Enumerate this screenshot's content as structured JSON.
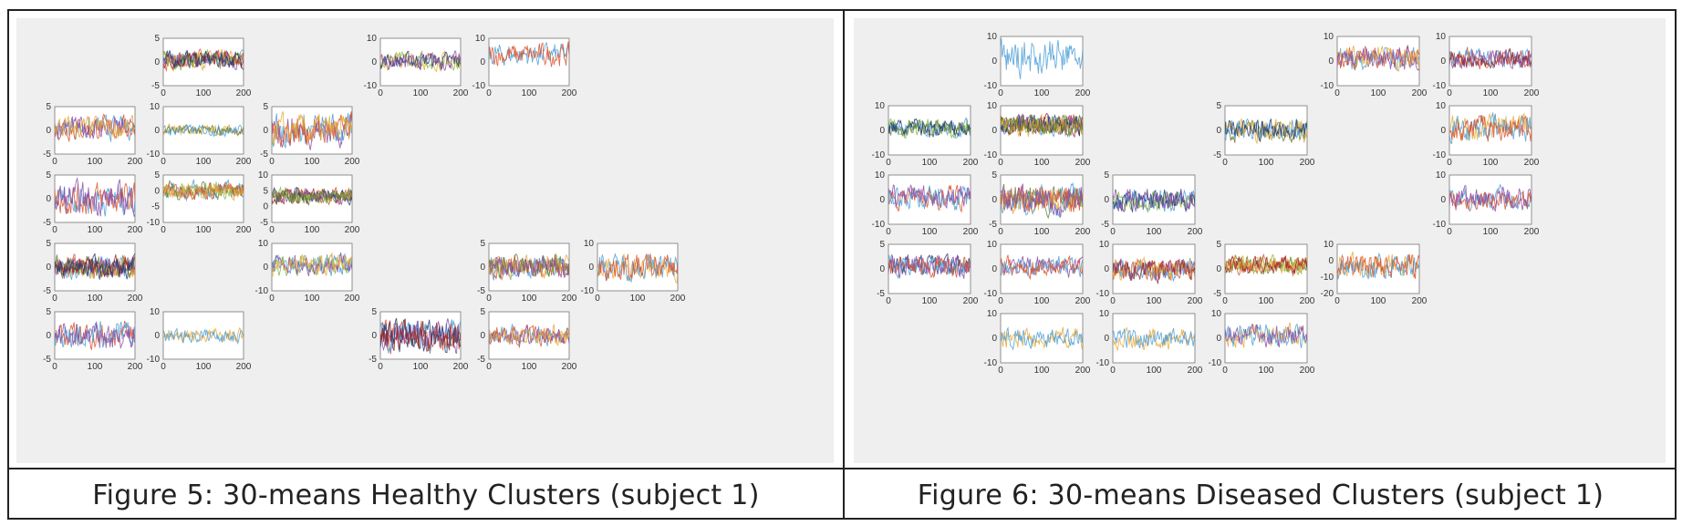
{
  "table": {
    "left_caption": "Figure 5: 30-means Healthy Clusters (subject 1)",
    "right_caption": "Figure 6: 30-means Diseased Clusters (subject 1)"
  },
  "colors": {
    "blue": "#4e9fd6",
    "red": "#d9542b",
    "yellow": "#e6a93a",
    "purple": "#8a4ea8",
    "green": "#84b83f",
    "navy": "#1f3d73",
    "darkred": "#9b2a2a",
    "olive": "#6a7a2a"
  },
  "chart_data": [
    {
      "type": "line",
      "panel": "healthy",
      "subplots": [
        {
          "row": 0,
          "col": 1,
          "ylim": [
            -5,
            5
          ],
          "yticks": [
            "5",
            "0",
            "-5"
          ],
          "xticks": [
            "0",
            "100",
            "200"
          ],
          "amp": 0.16,
          "colors": [
            "blue",
            "red",
            "yellow",
            "purple",
            "green",
            "darkred",
            "navy"
          ],
          "offset": 0.1
        },
        {
          "row": 0,
          "col": 3,
          "ylim": [
            -10,
            10
          ],
          "yticks": [
            "10",
            "0",
            "-10"
          ],
          "xticks": [
            "0",
            "100",
            "200"
          ],
          "amp": 0.16,
          "colors": [
            "green",
            "yellow",
            "navy",
            "purple"
          ],
          "offset": 0.05
        },
        {
          "row": 0,
          "col": 4,
          "ylim": [
            -10,
            10
          ],
          "yticks": [
            "10",
            "0",
            "-10"
          ],
          "xticks": [
            "0",
            "100",
            "200"
          ],
          "amp": 0.22,
          "colors": [
            "blue",
            "red"
          ],
          "offset": 0.3
        },
        {
          "row": 1,
          "col": 0,
          "ylim": [
            -5,
            5
          ],
          "yticks": [
            "5",
            "0",
            "-5"
          ],
          "xticks": [
            "0",
            "100",
            "200"
          ],
          "amp": 0.22,
          "colors": [
            "blue",
            "red",
            "purple",
            "yellow"
          ],
          "offset": 0.1
        },
        {
          "row": 1,
          "col": 1,
          "ylim": [
            -10,
            10
          ],
          "yticks": [
            "10",
            "0",
            "-10"
          ],
          "xticks": [
            "0",
            "100",
            "200"
          ],
          "amp": 0.1,
          "colors": [
            "yellow",
            "olive",
            "blue"
          ],
          "offset": 0
        },
        {
          "row": 1,
          "col": 2,
          "ylim": [
            -5,
            5
          ],
          "yticks": [
            "5",
            "0",
            "-5"
          ],
          "xticks": [
            "0",
            "100",
            "200"
          ],
          "amp": 0.3,
          "colors": [
            "blue",
            "purple",
            "red",
            "yellow"
          ],
          "offset": 0
        },
        {
          "row": 2,
          "col": 0,
          "ylim": [
            -5,
            5
          ],
          "yticks": [
            "5",
            "0",
            "-5"
          ],
          "xticks": [
            "0",
            "100",
            "200"
          ],
          "amp": 0.3,
          "colors": [
            "blue",
            "red",
            "purple"
          ],
          "offset": 0
        },
        {
          "row": 2,
          "col": 1,
          "ylim": [
            -10,
            10
          ],
          "yticks": [
            "5",
            "0",
            "-5",
            "-10"
          ],
          "xticks": [
            "0",
            "100",
            "200"
          ],
          "amp": 0.16,
          "colors": [
            "green",
            "blue",
            "olive",
            "red",
            "yellow"
          ],
          "offset": 0.35
        },
        {
          "row": 2,
          "col": 2,
          "ylim": [
            -10,
            10
          ],
          "yticks": [
            "10",
            "5",
            "0",
            "-5"
          ],
          "xticks": [
            "0",
            "100",
            "200"
          ],
          "amp": 0.14,
          "colors": [
            "darkred",
            "red",
            "navy",
            "purple",
            "green",
            "olive"
          ],
          "offset": 0.1
        },
        {
          "row": 3,
          "col": 0,
          "ylim": [
            -5,
            5
          ],
          "yticks": [
            "5",
            "0",
            "-5"
          ],
          "xticks": [
            "0",
            "100",
            "200"
          ],
          "amp": 0.2,
          "colors": [
            "blue",
            "red",
            "yellow",
            "purple",
            "olive",
            "darkred",
            "navy"
          ],
          "offset": 0
        },
        {
          "row": 3,
          "col": 2,
          "ylim": [
            -10,
            10
          ],
          "yticks": [
            "10",
            "0",
            "-10"
          ],
          "xticks": [
            "0",
            "100",
            "200"
          ],
          "amp": 0.2,
          "colors": [
            "blue",
            "green",
            "purple",
            "yellow"
          ],
          "offset": 0.1
        },
        {
          "row": 3,
          "col": 4,
          "ylim": [
            -5,
            5
          ],
          "yticks": [
            "5",
            "0",
            "-5"
          ],
          "xticks": [
            "0",
            "100",
            "200"
          ],
          "amp": 0.22,
          "colors": [
            "blue",
            "red",
            "yellow",
            "olive",
            "purple"
          ],
          "offset": 0
        },
        {
          "row": 3,
          "col": 5,
          "ylim": [
            -10,
            10
          ],
          "yticks": [
            "10",
            "0",
            "-10"
          ],
          "xticks": [
            "0",
            "100",
            "200"
          ],
          "amp": 0.25,
          "colors": [
            "yellow",
            "blue",
            "red"
          ],
          "offset": 0
        },
        {
          "row": 4,
          "col": 0,
          "ylim": [
            -5,
            5
          ],
          "yticks": [
            "5",
            "0",
            "-5"
          ],
          "xticks": [
            "0",
            "100",
            "200"
          ],
          "amp": 0.26,
          "colors": [
            "red",
            "blue",
            "purple"
          ],
          "offset": 0
        },
        {
          "row": 4,
          "col": 1,
          "ylim": [
            -10,
            10
          ],
          "yticks": [
            "10",
            "0",
            "-10"
          ],
          "xticks": [
            "0",
            "100",
            "200"
          ],
          "amp": 0.14,
          "colors": [
            "yellow",
            "blue"
          ],
          "offset": 0
        },
        {
          "row": 4,
          "col": 3,
          "ylim": [
            -5,
            5
          ],
          "yticks": [
            "5",
            "0",
            "-5"
          ],
          "xticks": [
            "0",
            "100",
            "200"
          ],
          "amp": 0.3,
          "colors": [
            "red",
            "blue",
            "purple",
            "navy",
            "darkred"
          ],
          "offset": 0
        },
        {
          "row": 4,
          "col": 4,
          "ylim": [
            -5,
            5
          ],
          "yticks": [
            "5",
            "0",
            "-5"
          ],
          "xticks": [
            "0",
            "100",
            "200"
          ],
          "amp": 0.18,
          "colors": [
            "blue",
            "red",
            "purple",
            "yellow"
          ],
          "offset": 0
        }
      ]
    },
    {
      "type": "line",
      "panel": "diseased",
      "subplots": [
        {
          "row": 0,
          "col": 1,
          "ylim": [
            -10,
            10
          ],
          "yticks": [
            "10",
            "0",
            "-10"
          ],
          "xticks": [
            "0",
            "100",
            "200"
          ],
          "amp": 0.34,
          "colors": [
            "blue"
          ],
          "offset": 0.15
        },
        {
          "row": 0,
          "col": 4,
          "ylim": [
            -10,
            10
          ],
          "yticks": [
            "10",
            "0",
            "-10"
          ],
          "xticks": [
            "0",
            "100",
            "200"
          ],
          "amp": 0.2,
          "colors": [
            "blue",
            "red",
            "yellow",
            "purple"
          ],
          "offset": 0.1
        },
        {
          "row": 0,
          "col": 5,
          "ylim": [
            -10,
            10
          ],
          "yticks": [
            "10",
            "0",
            "-10"
          ],
          "xticks": [
            "0",
            "100",
            "200"
          ],
          "amp": 0.18,
          "colors": [
            "red",
            "blue",
            "purple",
            "darkred"
          ],
          "offset": 0.1
        },
        {
          "row": 1,
          "col": 0,
          "ylim": [
            -10,
            10
          ],
          "yticks": [
            "10",
            "0",
            "-10"
          ],
          "xticks": [
            "0",
            "100",
            "200"
          ],
          "amp": 0.16,
          "colors": [
            "green",
            "blue",
            "olive",
            "navy"
          ],
          "offset": 0.1
        },
        {
          "row": 1,
          "col": 1,
          "ylim": [
            -10,
            10
          ],
          "yticks": [
            "10",
            "0",
            "-10"
          ],
          "xticks": [
            "0",
            "100",
            "200"
          ],
          "amp": 0.18,
          "colors": [
            "blue",
            "red",
            "darkred",
            "purple",
            "green",
            "navy",
            "yellow",
            "olive"
          ],
          "offset": 0.2
        },
        {
          "row": 1,
          "col": 3,
          "ylim": [
            -5,
            5
          ],
          "yticks": [
            "5",
            "0",
            "-5"
          ],
          "xticks": [
            "0",
            "100",
            "200"
          ],
          "amp": 0.2,
          "colors": [
            "olive",
            "blue",
            "yellow",
            "navy"
          ],
          "offset": 0
        },
        {
          "row": 1,
          "col": 5,
          "ylim": [
            -10,
            10
          ],
          "yticks": [
            "10",
            "0",
            "-10"
          ],
          "xticks": [
            "0",
            "100",
            "200"
          ],
          "amp": 0.24,
          "colors": [
            "yellow",
            "blue",
            "red"
          ],
          "offset": 0.1
        },
        {
          "row": 2,
          "col": 0,
          "ylim": [
            -10,
            10
          ],
          "yticks": [
            "10",
            "0",
            "-10"
          ],
          "xticks": [
            "0",
            "100",
            "200"
          ],
          "amp": 0.22,
          "colors": [
            "red",
            "blue",
            "purple"
          ],
          "offset": 0.1
        },
        {
          "row": 2,
          "col": 1,
          "ylim": [
            -5,
            5
          ],
          "yticks": [
            "5",
            "0",
            "-5"
          ],
          "xticks": [
            "0",
            "100",
            "200"
          ],
          "amp": 0.26,
          "colors": [
            "yellow",
            "olive",
            "blue",
            "red",
            "purple"
          ],
          "offset": 0
        },
        {
          "row": 2,
          "col": 2,
          "ylim": [
            -5,
            5
          ],
          "yticks": [
            "5",
            "0",
            "-5"
          ],
          "xticks": [
            "0",
            "100",
            "200"
          ],
          "amp": 0.2,
          "colors": [
            "blue",
            "green",
            "navy",
            "purple"
          ],
          "offset": 0
        },
        {
          "row": 2,
          "col": 5,
          "ylim": [
            -10,
            10
          ],
          "yticks": [
            "10",
            "0",
            "-10"
          ],
          "xticks": [
            "0",
            "100",
            "200"
          ],
          "amp": 0.2,
          "colors": [
            "blue",
            "red",
            "purple"
          ],
          "offset": 0.05
        },
        {
          "row": 3,
          "col": 0,
          "ylim": [
            -5,
            5
          ],
          "yticks": [
            "5",
            "0",
            "-5"
          ],
          "xticks": [
            "0",
            "100",
            "200"
          ],
          "amp": 0.2,
          "colors": [
            "navy",
            "blue",
            "purple",
            "red"
          ],
          "offset": 0.1
        },
        {
          "row": 3,
          "col": 1,
          "ylim": [
            -10,
            10
          ],
          "yticks": [
            "10",
            "0",
            "-10"
          ],
          "xticks": [
            "0",
            "100",
            "200"
          ],
          "amp": 0.18,
          "colors": [
            "purple",
            "blue",
            "red"
          ],
          "offset": 0.1
        },
        {
          "row": 3,
          "col": 2,
          "ylim": [
            -10,
            10
          ],
          "yticks": [
            "10",
            "0",
            "-10"
          ],
          "xticks": [
            "0",
            "100",
            "200"
          ],
          "amp": 0.2,
          "colors": [
            "red",
            "purple",
            "blue",
            "yellow",
            "darkred"
          ],
          "offset": 0
        },
        {
          "row": 3,
          "col": 3,
          "ylim": [
            -5,
            5
          ],
          "yticks": [
            "5",
            "0",
            "-5"
          ],
          "xticks": [
            "0",
            "100",
            "200"
          ],
          "amp": 0.16,
          "colors": [
            "olive",
            "green",
            "yellow",
            "red",
            "darkred"
          ],
          "offset": 0.15
        },
        {
          "row": 3,
          "col": 4,
          "ylim": [
            -20,
            10
          ],
          "yticks": [
            "10",
            "0",
            "-10",
            "-20"
          ],
          "xticks": [
            "0",
            "100",
            "200"
          ],
          "amp": 0.22,
          "colors": [
            "yellow",
            "blue",
            "red"
          ],
          "offset": 0.1
        },
        {
          "row": 4,
          "col": 1,
          "ylim": [
            -10,
            10
          ],
          "yticks": [
            "10",
            "0",
            "-10"
          ],
          "xticks": [
            "0",
            "100",
            "200"
          ],
          "amp": 0.18,
          "colors": [
            "yellow",
            "blue"
          ],
          "offset": 0
        },
        {
          "row": 4,
          "col": 2,
          "ylim": [
            -10,
            10
          ],
          "yticks": [
            "10",
            "0",
            "-10"
          ],
          "xticks": [
            "0",
            "100",
            "200"
          ],
          "amp": 0.18,
          "colors": [
            "yellow",
            "blue"
          ],
          "offset": 0
        },
        {
          "row": 4,
          "col": 3,
          "ylim": [
            -10,
            10
          ],
          "yticks": [
            "10",
            "0",
            "-10"
          ],
          "xticks": [
            "0",
            "100",
            "200"
          ],
          "amp": 0.2,
          "colors": [
            "yellow",
            "blue",
            "purple"
          ],
          "offset": 0.1
        }
      ]
    }
  ]
}
